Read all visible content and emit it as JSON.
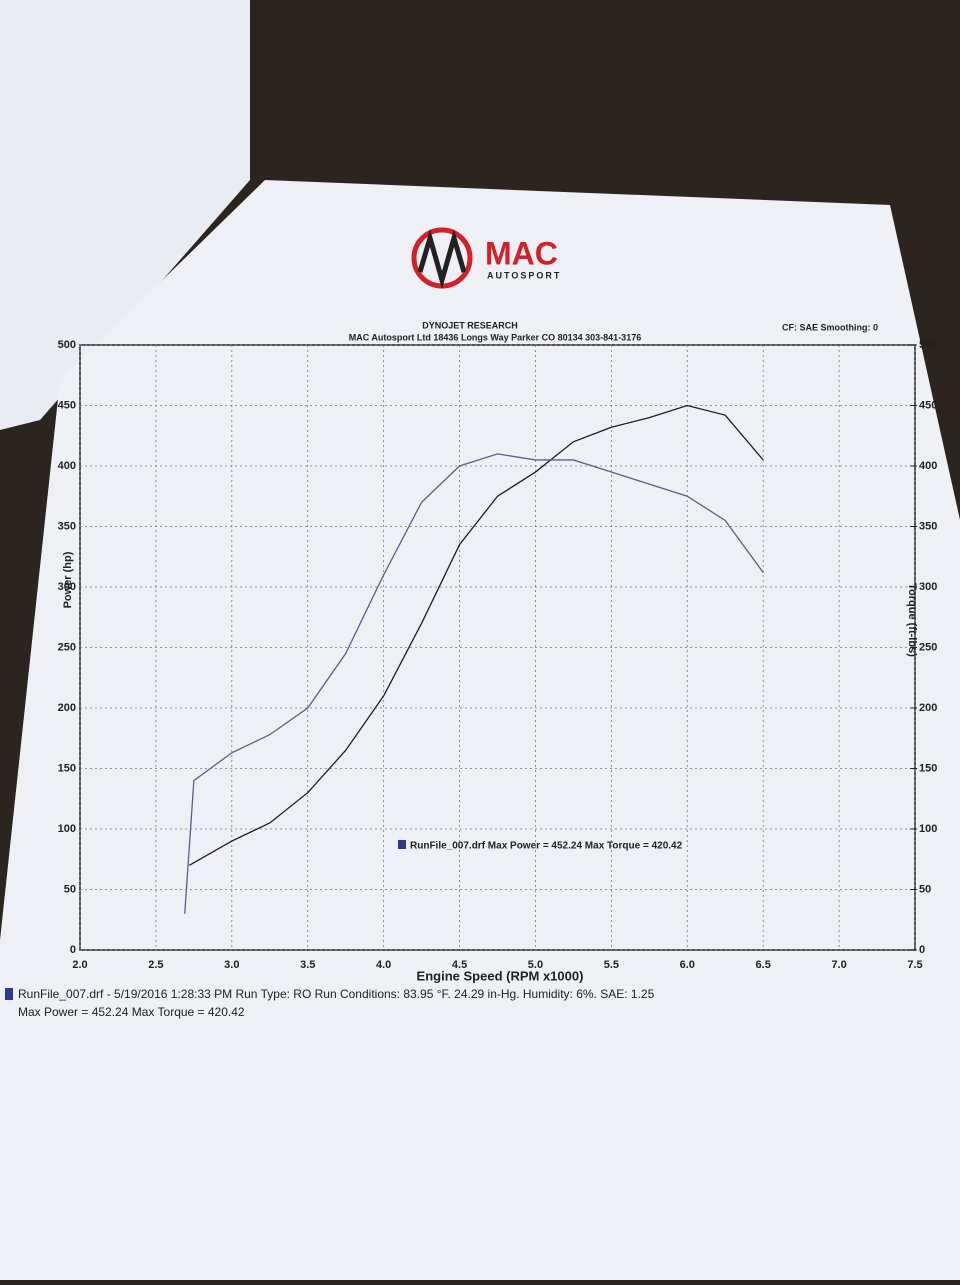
{
  "header": {
    "logo_main": "MAC",
    "logo_sub": "AUTOSPORT",
    "title": "DYNOJET RESEARCH",
    "address": "MAC Autosport Ltd 18436 Longs Way Parker CO 80134   303-841-3176",
    "settings": "CF: SAE  Smoothing: 0"
  },
  "chart_data": {
    "type": "line",
    "xlabel": "Engine Speed (RPM x1000)",
    "ylabel": "Power (hp)",
    "y2label": "Torque (ft-lbs)",
    "legend": "RunFile_007.drf Max Power = 452.24     Max Torque = 420.42",
    "xlim": [
      2.0,
      7.5
    ],
    "xticks": [
      {
        "value": 2.0,
        "label": "2.0"
      },
      2.5,
      {
        "value": 3.0,
        "label": "3.0"
      },
      3.5,
      {
        "value": 4.0,
        "label": "4.0"
      },
      4.5,
      {
        "value": 5.0,
        "label": "5.0"
      },
      5.5,
      {
        "value": 6.0,
        "label": "6.0"
      },
      6.5,
      {
        "value": 7.0,
        "label": "7.0"
      },
      7.5
    ],
    "ylim": [
      0,
      500
    ],
    "yticks": [
      0,
      50,
      100,
      150,
      200,
      250,
      300,
      350,
      400,
      450,
      500
    ],
    "y2lim": [
      0,
      500
    ],
    "y2ticks": [
      0,
      50,
      100,
      150,
      200,
      250,
      300,
      350,
      400,
      450,
      500
    ],
    "grid": true,
    "series": [
      {
        "color": "#1c1c2e",
        "x": [
          2.72,
          3.0,
          3.25,
          3.5,
          3.75,
          4.0,
          4.25,
          4.5,
          4.75,
          5.0,
          5.25,
          5.5,
          5.75,
          6.0,
          6.25,
          6.5
        ],
        "values": [
          70,
          90,
          105,
          130,
          165,
          210,
          270,
          335,
          375,
          395,
          420,
          432,
          440,
          450,
          442,
          405
        ]
      },
      {
        "color": "#5a5f8a",
        "axis": "y2",
        "x": [
          2.69,
          2.75,
          3.0,
          3.25,
          3.5,
          3.75,
          4.0,
          4.25,
          4.5,
          4.75,
          5.0,
          5.25,
          5.5,
          5.75,
          6.0,
          6.25,
          6.5
        ],
        "values": [
          30,
          140,
          163,
          178,
          200,
          245,
          310,
          370,
          400,
          410,
          405,
          405,
          395,
          385,
          375,
          355,
          312
        ]
      }
    ]
  },
  "footer": [
    "RunFile_007.drf - 5/19/2016 1:28:33 PM  Run Type: RO  Run Conditions: 83.95 °F. 24.29 in-Hg.  Humidity: 6%. SAE: 1.25",
    "Max Power = 452.24  Max Torque = 420.42"
  ]
}
